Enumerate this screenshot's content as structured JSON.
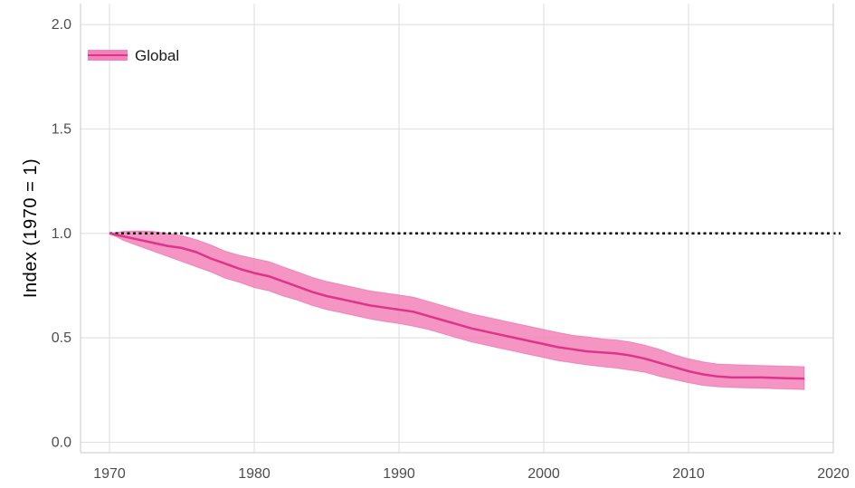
{
  "chart_data": {
    "type": "line",
    "title": "",
    "xlabel": "",
    "ylabel": "Index (1970 = 1)",
    "xlim": [
      1968,
      2020
    ],
    "ylim": [
      -0.05,
      2.1
    ],
    "x_ticks": [
      1970,
      1980,
      1990,
      2000,
      2010,
      2020
    ],
    "y_ticks": [
      0.0,
      0.5,
      1.0,
      1.5,
      2.0
    ],
    "y_tick_labels": [
      "0.0",
      "0.5",
      "1.0",
      "1.5",
      "2.0"
    ],
    "grid": true,
    "legend_position": "top-left",
    "reference_line": {
      "y": 1.0,
      "style": "dotted",
      "color": "#000000"
    },
    "series": [
      {
        "name": "Global",
        "color": "#e0338c",
        "band_color": "#f282b9",
        "x": [
          1970,
          1971,
          1972,
          1973,
          1974,
          1975,
          1976,
          1977,
          1978,
          1979,
          1980,
          1981,
          1982,
          1983,
          1984,
          1985,
          1986,
          1987,
          1988,
          1989,
          1990,
          1991,
          1992,
          1993,
          1994,
          1995,
          1996,
          1997,
          1998,
          1999,
          2000,
          2001,
          2002,
          2003,
          2004,
          2005,
          2006,
          2007,
          2008,
          2009,
          2010,
          2011,
          2012,
          2013,
          2014,
          2015,
          2016,
          2017,
          2018
        ],
        "values": [
          1.0,
          0.985,
          0.97,
          0.955,
          0.94,
          0.93,
          0.91,
          0.88,
          0.855,
          0.83,
          0.81,
          0.795,
          0.77,
          0.745,
          0.72,
          0.7,
          0.685,
          0.67,
          0.655,
          0.645,
          0.635,
          0.625,
          0.605,
          0.585,
          0.565,
          0.545,
          0.53,
          0.515,
          0.5,
          0.485,
          0.47,
          0.455,
          0.445,
          0.435,
          0.43,
          0.425,
          0.415,
          0.4,
          0.38,
          0.36,
          0.34,
          0.325,
          0.315,
          0.31,
          0.31,
          0.31,
          0.308,
          0.306,
          0.305
        ],
        "upper": [
          1.0,
          1.01,
          1.012,
          1.01,
          1.0,
          0.99,
          0.97,
          0.945,
          0.915,
          0.895,
          0.88,
          0.865,
          0.84,
          0.815,
          0.79,
          0.77,
          0.755,
          0.74,
          0.725,
          0.715,
          0.705,
          0.695,
          0.675,
          0.655,
          0.635,
          0.615,
          0.6,
          0.585,
          0.57,
          0.555,
          0.54,
          0.525,
          0.512,
          0.505,
          0.495,
          0.49,
          0.48,
          0.465,
          0.445,
          0.42,
          0.4,
          0.385,
          0.375,
          0.372,
          0.37,
          0.368,
          0.366,
          0.364,
          0.362
        ],
        "lower": [
          1.0,
          0.965,
          0.94,
          0.915,
          0.89,
          0.865,
          0.84,
          0.815,
          0.785,
          0.765,
          0.74,
          0.725,
          0.7,
          0.68,
          0.655,
          0.635,
          0.62,
          0.605,
          0.59,
          0.578,
          0.568,
          0.555,
          0.54,
          0.52,
          0.5,
          0.48,
          0.465,
          0.45,
          0.435,
          0.42,
          0.405,
          0.39,
          0.38,
          0.37,
          0.362,
          0.355,
          0.345,
          0.335,
          0.315,
          0.3,
          0.285,
          0.272,
          0.265,
          0.262,
          0.26,
          0.258,
          0.256,
          0.254,
          0.252
        ]
      }
    ]
  }
}
